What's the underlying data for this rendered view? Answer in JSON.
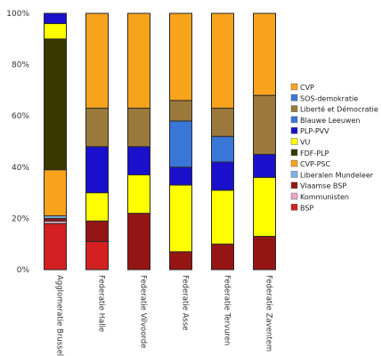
{
  "chart_data": {
    "type": "bar",
    "stacked": true,
    "categories": [
      "Agglomeratie Brussel",
      "Federatie Halle",
      "Federatie Vilvoorde",
      "Federatie Asse",
      "Federatie Tervuren",
      "Federatie Zaventem"
    ],
    "y_ticks": [
      "0%",
      "20%",
      "40%",
      "60%",
      "80%",
      "100%"
    ],
    "ylim": [
      0,
      100
    ],
    "grid": false,
    "legend_position": "right",
    "series": [
      {
        "name": "BSP",
        "color": "#d42020",
        "values": [
          18,
          11,
          0,
          0,
          0,
          0
        ]
      },
      {
        "name": "Kommunisten",
        "color": "#e9a7c6",
        "values": [
          1,
          0,
          0,
          0,
          0,
          0
        ]
      },
      {
        "name": "Vlaamse BSP",
        "color": "#951515",
        "values": [
          1,
          8,
          22,
          7,
          10,
          13
        ]
      },
      {
        "name": "Liberalen Mundeleer",
        "color": "#7fb2e5",
        "values": [
          1,
          0,
          0,
          0,
          0,
          0
        ]
      },
      {
        "name": "CVP-PSC",
        "color": "#f7a31c",
        "values": [
          18,
          0,
          0,
          0,
          0,
          0
        ]
      },
      {
        "name": "FDF-PLP",
        "color": "#383800",
        "values": [
          51,
          0,
          0,
          0,
          0,
          0
        ]
      },
      {
        "name": "VU",
        "color": "#ffff00",
        "values": [
          6,
          11,
          15,
          26,
          21,
          23
        ]
      },
      {
        "name": "PLP-PVV",
        "color": "#1a10cc",
        "values": [
          4,
          18,
          11,
          7,
          11,
          9
        ]
      },
      {
        "name": "Blauwe Leeuwen",
        "color": "#3a76d8",
        "values": [
          0,
          0,
          0,
          18,
          10,
          0
        ]
      },
      {
        "name": "Liberté et Démocratie",
        "color": "#9b783c",
        "values": [
          0,
          15,
          15,
          8,
          11,
          23
        ]
      },
      {
        "name": "SOS-demokratie",
        "color": "#3a76d8",
        "values": [
          0,
          0,
          0,
          0,
          0,
          0
        ]
      },
      {
        "name": "CVP",
        "color": "#f7a31c",
        "values": [
          0,
          37,
          37,
          34,
          37,
          32
        ]
      }
    ],
    "legend_order": [
      "CVP",
      "SOS-demokratie",
      "Liberté et Démocratie",
      "Blauwe Leeuwen",
      "PLP-PVV",
      "VU",
      "FDF-PLP",
      "CVP-PSC",
      "Liberalen Mundeleer",
      "Vlaamse BSP",
      "Kommunisten",
      "BSP"
    ]
  }
}
